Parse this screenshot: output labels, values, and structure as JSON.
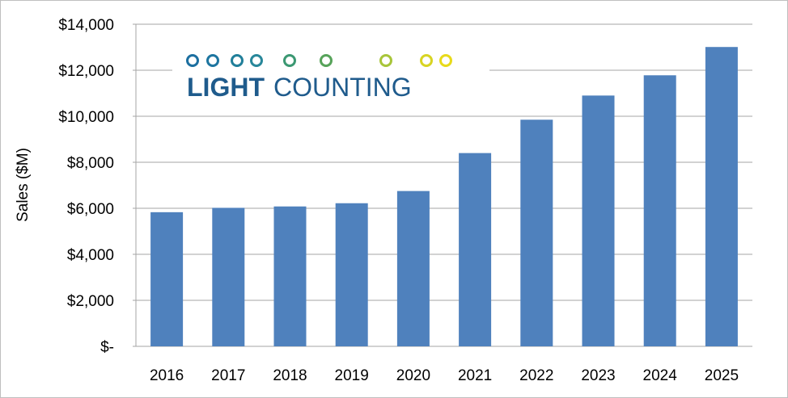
{
  "chart_data": {
    "type": "bar",
    "title": "",
    "xlabel": "",
    "ylabel": "Sales ($M)",
    "ylim": [
      0,
      14000
    ],
    "grid": true,
    "categories": [
      "2016",
      "2017",
      "2018",
      "2019",
      "2020",
      "2021",
      "2022",
      "2023",
      "2024",
      "2025"
    ],
    "values": [
      5830,
      6020,
      6080,
      6220,
      6750,
      8400,
      9850,
      10900,
      11780,
      13010
    ],
    "y_ticks": [
      0,
      2000,
      4000,
      6000,
      8000,
      10000,
      12000,
      14000
    ],
    "y_tick_labels": [
      "$-",
      "$2,000",
      "$4,000",
      "$6,000",
      "$8,000",
      "$10,000",
      "$12,000",
      "$14,000"
    ],
    "bar_color": "#4f81bd",
    "gridline_color": "#a6a6a6"
  },
  "logo": {
    "text_bold": "LIGHT",
    "text_regular": "COUNTING",
    "color": "#1f5b8c"
  }
}
